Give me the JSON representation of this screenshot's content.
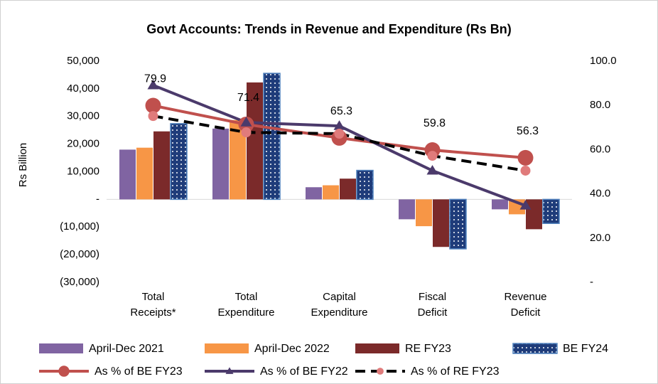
{
  "chart_data": {
    "type": "bar-line",
    "title": "Govt Accounts: Trends in Revenue and Expenditure (Rs Bn)",
    "ylabel": "Rs Billion",
    "categories": [
      [
        "Total",
        "Receipts*"
      ],
      [
        "Total",
        "Expenditure"
      ],
      [
        "Capital",
        "Expenditure"
      ],
      [
        "Fiscal",
        "Deficit"
      ],
      [
        "Revenue",
        "Deficit"
      ]
    ],
    "ylim": [
      -30000,
      50000
    ],
    "yticks": [
      {
        "value": 50000,
        "label": "50,000"
      },
      {
        "value": 40000,
        "label": "40,000"
      },
      {
        "value": 30000,
        "label": "30,000"
      },
      {
        "value": 20000,
        "label": "20,000"
      },
      {
        "value": 10000,
        "label": "10,000"
      },
      {
        "value": 0,
        "label": "-"
      },
      {
        "value": -10000,
        "label": "(10,000)"
      },
      {
        "value": -20000,
        "label": "(20,000)"
      },
      {
        "value": -30000,
        "label": "(30,000)"
      }
    ],
    "y2lim": [
      0,
      100
    ],
    "y2ticks": [
      {
        "value": 100,
        "label": "100.0"
      },
      {
        "value": 80,
        "label": "80.0"
      },
      {
        "value": 60,
        "label": "60.0"
      },
      {
        "value": 40,
        "label": "40.0"
      },
      {
        "value": 20,
        "label": "20.0"
      },
      {
        "value": 0,
        "label": "-"
      }
    ],
    "grid": false,
    "series": [
      {
        "name": "April-Dec 2021",
        "kind": "bar",
        "color": "#8064a2",
        "values": [
          18000,
          25600,
          4400,
          -7200,
          -3600
        ]
      },
      {
        "name": "April-Dec 2022",
        "kind": "bar",
        "color": "#f79646",
        "values": [
          18700,
          28700,
          5100,
          -9700,
          -5400
        ]
      },
      {
        "name": "RE FY23",
        "kind": "bar",
        "color": "#7b2a2a",
        "values": [
          24600,
          42300,
          7500,
          -17200,
          -10800
        ]
      },
      {
        "name": "BE FY24",
        "kind": "bar",
        "color": "#1f3c7a",
        "pattern": "dots",
        "values": [
          27400,
          45600,
          10500,
          -17900,
          -8700
        ]
      },
      {
        "name": "As % of BE FY23",
        "kind": "line",
        "axis": "y2",
        "color": "#c0504d",
        "marker": "circle",
        "marker_size": 11,
        "labels": true,
        "values": [
          79.9,
          71.4,
          65.3,
          59.8,
          56.3
        ]
      },
      {
        "name": "As % of BE FY22",
        "kind": "line",
        "axis": "y2",
        "color": "#4b3a6b",
        "marker": "triangle",
        "marker_size": 8,
        "values": [
          89.1,
          72.3,
          70.7,
          50.5,
          34.7
        ]
      },
      {
        "name": "As % of RE FY23",
        "kind": "line",
        "axis": "y2",
        "color": "#000000",
        "dash": true,
        "marker": "circle",
        "marker_color": "#e07b7b",
        "marker_size": 7,
        "values": [
          75.2,
          67.8,
          67.2,
          57.2,
          50.5
        ]
      }
    ]
  }
}
